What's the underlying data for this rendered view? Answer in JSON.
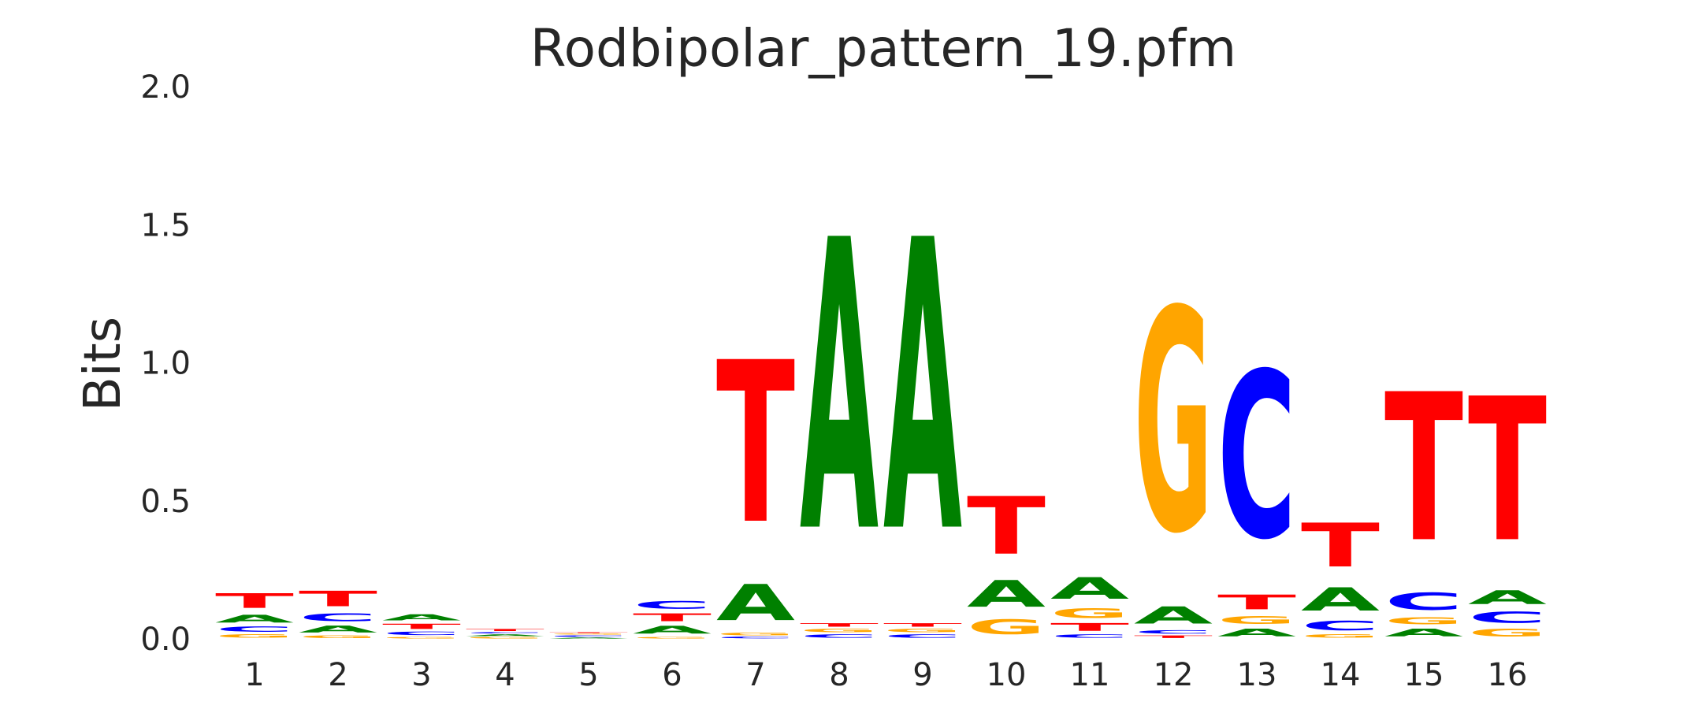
{
  "chart_data": {
    "type": "sequence-logo",
    "title": "Rodbipolar_pattern_19.pfm",
    "ylabel": "Bits",
    "xlabel": "",
    "ylim": [
      0,
      2.0
    ],
    "yticks": [
      "0.0",
      "0.5",
      "1.0",
      "1.5",
      "2.0"
    ],
    "grid": false,
    "colors": {
      "A": "#008000",
      "C": "#0000ff",
      "G": "#ffa500",
      "T": "#ff0000"
    },
    "positions": [
      {
        "label": "1",
        "stack": [
          [
            "G",
            0.02
          ],
          [
            "C",
            0.03
          ],
          [
            "A",
            0.045
          ],
          [
            "T",
            0.085
          ]
        ]
      },
      {
        "label": "2",
        "stack": [
          [
            "G",
            0.015
          ],
          [
            "A",
            0.04
          ],
          [
            "C",
            0.045
          ],
          [
            "T",
            0.09
          ]
        ]
      },
      {
        "label": "3",
        "stack": [
          [
            "G",
            0.01
          ],
          [
            "C",
            0.02
          ],
          [
            "T",
            0.03
          ],
          [
            "A",
            0.035
          ]
        ]
      },
      {
        "label": "4",
        "stack": [
          [
            "G",
            0.008
          ],
          [
            "A",
            0.01
          ],
          [
            "C",
            0.008
          ],
          [
            "T",
            0.012
          ]
        ]
      },
      {
        "label": "5",
        "stack": [
          [
            "A",
            0.006
          ],
          [
            "C",
            0.008
          ],
          [
            "G",
            0.006
          ],
          [
            "T",
            0.005
          ]
        ]
      },
      {
        "label": "6",
        "stack": [
          [
            "G",
            0.01
          ],
          [
            "A",
            0.045
          ],
          [
            "T",
            0.045
          ],
          [
            "C",
            0.045
          ]
        ]
      },
      {
        "label": "7",
        "stack": [
          [
            "C",
            0.01
          ],
          [
            "G",
            0.015
          ],
          [
            "A",
            0.21
          ],
          [
            "T",
            0.94
          ]
        ]
      },
      {
        "label": "8",
        "stack": [
          [
            "C",
            0.02
          ],
          [
            "G",
            0.02
          ],
          [
            "T",
            0.02
          ],
          [
            "A",
            1.69
          ]
        ]
      },
      {
        "label": "9",
        "stack": [
          [
            "C",
            0.02
          ],
          [
            "G",
            0.02
          ],
          [
            "T",
            0.02
          ],
          [
            "A",
            1.69
          ]
        ]
      },
      {
        "label": "10",
        "stack": [
          [
            "C",
            0.0
          ],
          [
            "G",
            0.085
          ],
          [
            "A",
            0.155
          ],
          [
            "T",
            0.335
          ]
        ]
      },
      {
        "label": "11",
        "stack": [
          [
            "C",
            0.02
          ],
          [
            "T",
            0.045
          ],
          [
            "G",
            0.055
          ],
          [
            "A",
            0.125
          ]
        ]
      },
      {
        "label": "12",
        "stack": [
          [
            "T",
            0.015
          ],
          [
            "C",
            0.02
          ],
          [
            "A",
            0.1
          ],
          [
            "G",
            1.29
          ]
        ]
      },
      {
        "label": "13",
        "stack": [
          [
            "A",
            0.045
          ],
          [
            "G",
            0.045
          ],
          [
            "T",
            0.085
          ],
          [
            "C",
            0.965
          ]
        ]
      },
      {
        "label": "14",
        "stack": [
          [
            "G",
            0.02
          ],
          [
            "C",
            0.055
          ],
          [
            "A",
            0.135
          ],
          [
            "T",
            0.255
          ]
        ]
      },
      {
        "label": "15",
        "stack": [
          [
            "A",
            0.045
          ],
          [
            "G",
            0.04
          ],
          [
            "C",
            0.1
          ],
          [
            "T",
            0.86
          ]
        ]
      },
      {
        "label": "16",
        "stack": [
          [
            "G",
            0.045
          ],
          [
            "C",
            0.065
          ],
          [
            "A",
            0.08
          ],
          [
            "T",
            0.835
          ]
        ]
      }
    ]
  }
}
